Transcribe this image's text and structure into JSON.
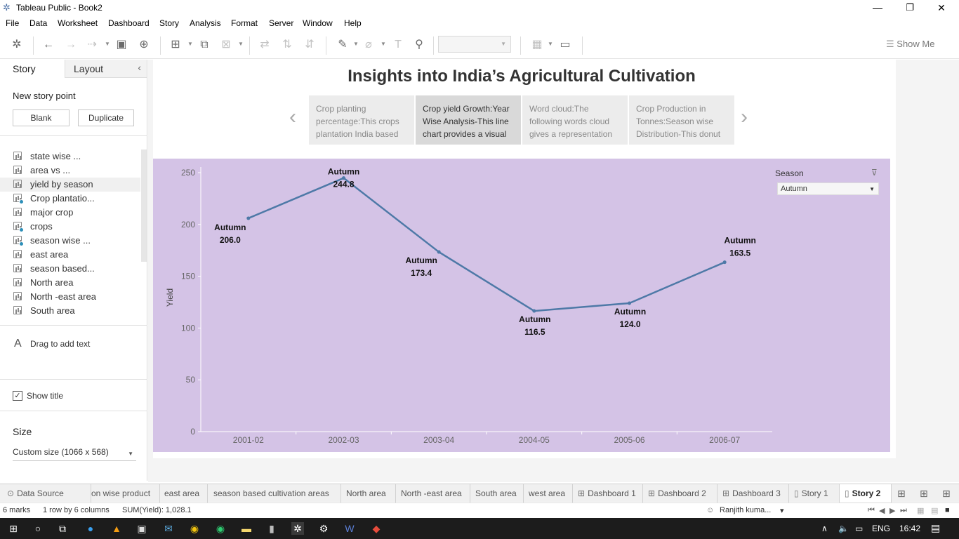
{
  "window": {
    "title": "Tableau Public - Book2",
    "minimize": "—",
    "restore": "❐",
    "close": "✕"
  },
  "menu": [
    "File",
    "Data",
    "Worksheet",
    "Dashboard",
    "Story",
    "Analysis",
    "Format",
    "Server",
    "Window",
    "Help"
  ],
  "toolbar": {
    "show_me": "Show Me"
  },
  "left_panel": {
    "tab_story": "Story",
    "tab_layout": "Layout",
    "collapse": "‹",
    "new_story_point": "New story point",
    "blank": "Blank",
    "duplicate": "Duplicate",
    "sheets": [
      {
        "name": "state wise ...",
        "badge": false,
        "selected": false
      },
      {
        "name": "area vs ...",
        "badge": false,
        "selected": false
      },
      {
        "name": "yield by season",
        "badge": false,
        "selected": true
      },
      {
        "name": "Crop plantatio...",
        "badge": true,
        "selected": false
      },
      {
        "name": "major crop",
        "badge": false,
        "selected": false
      },
      {
        "name": "crops",
        "badge": true,
        "selected": false
      },
      {
        "name": "season wise ...",
        "badge": true,
        "selected": false
      },
      {
        "name": "east area",
        "badge": false,
        "selected": false
      },
      {
        "name": " season based...",
        "badge": false,
        "selected": false
      },
      {
        "name": "North area",
        "badge": false,
        "selected": false
      },
      {
        "name": "North -east area",
        "badge": false,
        "selected": false
      },
      {
        "name": "South area",
        "badge": false,
        "selected": false
      }
    ],
    "drag_text": "Drag to add text",
    "show_title": "Show title",
    "show_title_checked": "✓",
    "size_label": "Size",
    "size_value": "Custom size (1066 x 568)"
  },
  "story": {
    "title": "Insights into India’s Agricultural Cultivation",
    "points": [
      {
        "text": "Crop planting percentage:This crops plantation India based",
        "active": false
      },
      {
        "text": "Crop yield Growth:Year Wise Analysis-This line chart provides a visual",
        "active": true
      },
      {
        "text": "Word cloud:The following words cloud gives a representation",
        "active": false
      },
      {
        "text": "Crop Production in Tonnes:Season wise Distribution-This donut",
        "active": false
      }
    ],
    "prev": "‹",
    "next": "›"
  },
  "filter": {
    "label": "Season",
    "value": "Autumn"
  },
  "chart_data": {
    "type": "line",
    "title": "",
    "xlabel": "",
    "ylabel": "Yield",
    "categories": [
      "2001-02",
      "2002-03",
      "2003-04",
      "2004-05",
      "2005-06",
      "2006-07"
    ],
    "series": [
      {
        "values": [
          206.0,
          244.8,
          173.4,
          116.5,
          124.0,
          163.5
        ],
        "labels": [
          "Autumn",
          "Autumn",
          "Autumn",
          "Autumn",
          "Autumn",
          "Autumn"
        ],
        "value_labels": [
          "206.0",
          "244.8",
          "173.4",
          "116.5",
          "124.0",
          "163.5"
        ]
      }
    ],
    "yticks": [
      "0",
      "50",
      "100",
      "150",
      "200",
      "250"
    ],
    "ylim": [
      0,
      250
    ],
    "line_color": "#4e79a7",
    "background": "#d4c3e6",
    "grid": false
  },
  "sheet_tabs": [
    {
      "label": "Data Source",
      "glyph": "⊙",
      "active": false
    },
    {
      "label": "on wise product",
      "glyph": "",
      "active": false
    },
    {
      "label": "east area",
      "glyph": "",
      "active": false
    },
    {
      "label": "season based cultivation areas",
      "glyph": "",
      "active": false
    },
    {
      "label": "North area",
      "glyph": "",
      "active": false
    },
    {
      "label": "North -east area",
      "glyph": "",
      "active": false
    },
    {
      "label": "South area",
      "glyph": "",
      "active": false
    },
    {
      "label": "west area",
      "glyph": "",
      "active": false
    },
    {
      "label": "Dashboard 1",
      "glyph": "⊞",
      "active": false
    },
    {
      "label": "Dashboard 2",
      "glyph": "⊞",
      "active": false
    },
    {
      "label": "Dashboard 3",
      "glyph": "⊞",
      "active": false
    },
    {
      "label": "Story 1",
      "glyph": "▯",
      "active": false
    },
    {
      "label": "Story 2",
      "glyph": "▯",
      "active": true
    }
  ],
  "status": {
    "marks": "6 marks",
    "rows_cols": "1 row by 6 columns",
    "sum": "SUM(Yield): 1,028.1",
    "user": "Ranjith kuma...",
    "user_caret": "▾"
  },
  "taskbar": {
    "lang": "ENG",
    "time": "16:42"
  }
}
